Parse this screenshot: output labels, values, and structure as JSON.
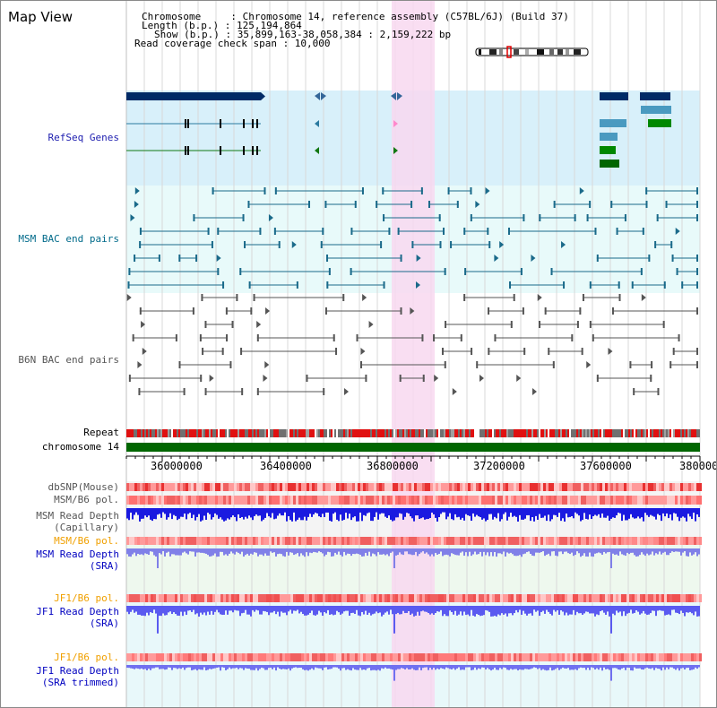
{
  "header": {
    "title": "Map View",
    "info_lines": [
      "Chromosome     : Chromosome 14, reference assembly (C57BL/6J) (Build 37)",
      "Length (b.p.) : 125,194,864",
      "Show (b.p.) : 35,899,163-38,058,384 : 2,159,222 bp",
      "Read coverage check span : 10,000"
    ]
  },
  "tracks": {
    "refseq": "RefSeq Genes",
    "msm_bac": "MSM BAC end pairs",
    "b6n_bac": "B6N BAC end pairs",
    "repeat": "Repeat",
    "chromosome": "chromosome 14",
    "dbsnp": "dbSNP(Mouse)",
    "msm_pol": "MSM/B6 pol.",
    "msm_depth_cap_1": "MSM Read Depth",
    "msm_depth_cap_2": "(Capillary)",
    "msm_pol_2": "MSM/B6 pol.",
    "msm_depth_sra_1": "MSM Read Depth",
    "msm_depth_sra_2": "(SRA)",
    "jf1_pol": "JF1/B6 pol.",
    "jf1_depth_sra_1": "JF1 Read Depth",
    "jf1_depth_sra_2": "(SRA)",
    "jf1_pol_2": "JF1/B6 pol.",
    "jf1_depth_trim_1": "JF1 Read Depth",
    "jf1_depth_trim_2": "(SRA trimmed)"
  },
  "axis": {
    "ticks": [
      "36000000",
      "36400000",
      "36800000",
      "37200000",
      "37600000",
      "380000"
    ]
  },
  "colors": {
    "refseq_label": "#2020b0",
    "msm_label": "#006a8a",
    "b6n_label": "#555555",
    "orange_label": "#f0a000",
    "blue_label": "#0000c0",
    "highlight": "#f8d8f0",
    "chromosome_bar": "#006600"
  }
}
